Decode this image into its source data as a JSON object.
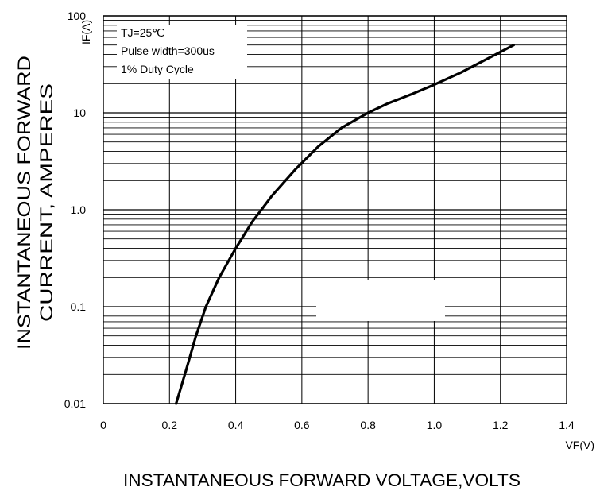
{
  "chart_data": {
    "type": "line",
    "title": "",
    "x_unit_label": "VF(V)",
    "y_unit_label": "IF(A)",
    "xlabel": "INSTANTANEOUS FORWARD VOLTAGE,VOLTS",
    "ylabel_lines": [
      "INSTANTANEOUS FORWARD",
      "CURRENT, AMPERES"
    ],
    "xlim": [
      0,
      1.4
    ],
    "ylim": [
      0.01,
      100
    ],
    "yscale": "log",
    "grid": true,
    "x_ticks": [
      0,
      0.2,
      0.4,
      0.6,
      0.8,
      1.0,
      1.2,
      1.4
    ],
    "x_tick_labels": [
      "0",
      "0.2",
      "0.4",
      "0.6",
      "0.8",
      "1.0",
      "1.2",
      "1.4"
    ],
    "y_ticks": [
      0.01,
      0.1,
      1,
      10,
      100
    ],
    "y_tick_labels": [
      "0.01",
      "0.1",
      "1.0",
      "10",
      "100"
    ],
    "annotations": [
      "TJ=25℃",
      "Pulse width=300us",
      "1% Duty Cycle"
    ],
    "series": [
      {
        "x": [
          0.22,
          0.25,
          0.28,
          0.31,
          0.35,
          0.4,
          0.45,
          0.51,
          0.58,
          0.65,
          0.72,
          0.8,
          0.86,
          0.93,
          1.0,
          1.08,
          1.16,
          1.24
        ],
        "y": [
          0.01,
          0.022,
          0.05,
          0.1,
          0.2,
          0.4,
          0.75,
          1.4,
          2.6,
          4.5,
          7.0,
          10,
          12.5,
          15.5,
          19.5,
          26,
          36,
          50
        ]
      }
    ]
  }
}
